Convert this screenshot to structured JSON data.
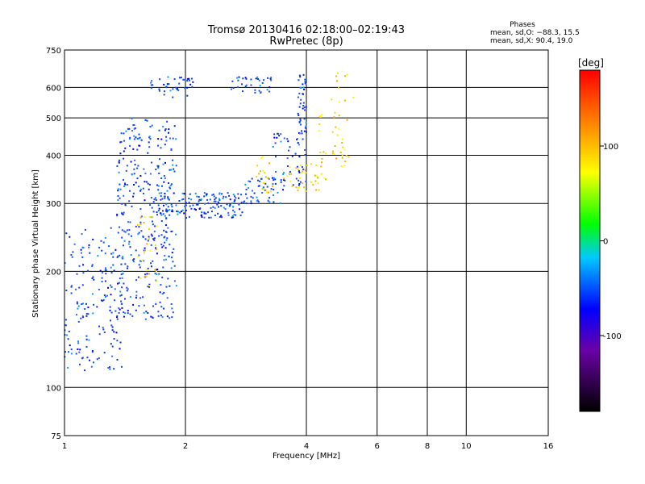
{
  "chart_data": {
    "type": "scatter",
    "title": "Tromsø 20130416 02:18:00–02:19:43",
    "subtitle": "RwPretec (8p)",
    "stats": {
      "heading": "Phases",
      "line_o": "mean, sd,O: −88.3, 15.5",
      "line_x": "mean, sd,X:  90.4, 19.0"
    },
    "xlabel": "Frequency [MHz]",
    "ylabel": "Stationary phase Virtual Height [km]",
    "x_scale": "log",
    "y_scale": "log",
    "xlim": [
      1,
      16
    ],
    "ylim": [
      75,
      750
    ],
    "x_ticks": [
      1,
      2,
      4,
      6,
      8,
      10,
      16
    ],
    "y_ticks": [
      75,
      100,
      200,
      300,
      400,
      500,
      600,
      750
    ],
    "grid": true,
    "colorbar": {
      "label": "[deg]",
      "range": [
        -180,
        180
      ],
      "ticks": [
        100,
        0,
        -100
      ]
    },
    "series": [
      {
        "mode": "O",
        "color_hint": "blue (≈ -90 deg)",
        "clusters": [
          {
            "x_range": [
              1.0,
              1.4
            ],
            "y_range": [
              110,
              260
            ],
            "count": 180
          },
          {
            "x_range": [
              1.35,
              1.9
            ],
            "y_range": [
              150,
              500
            ],
            "count": 350
          },
          {
            "x_range": [
              1.7,
              2.8
            ],
            "y_range": [
              275,
              320
            ],
            "count": 160
          },
          {
            "x_range": [
              2.8,
              3.5
            ],
            "y_range": [
              300,
              350
            ],
            "count": 50
          },
          {
            "x_range": [
              3.3,
              4.0
            ],
            "y_range": [
              330,
              460
            ],
            "count": 50
          },
          {
            "x_range": [
              3.8,
              4.0
            ],
            "y_range": [
              440,
              650
            ],
            "count": 45
          },
          {
            "x_range": [
              1.6,
              2.1
            ],
            "y_range": [
              560,
              640
            ],
            "count": 40
          },
          {
            "x_range": [
              2.6,
              3.3
            ],
            "y_range": [
              580,
              640
            ],
            "count": 35
          }
        ]
      },
      {
        "mode": "X",
        "color_hint": "yellow/orange (≈ +90 deg)",
        "clusters": [
          {
            "x_range": [
              1.5,
              1.7
            ],
            "y_range": [
              180,
              280
            ],
            "count": 30
          },
          {
            "x_range": [
              3.0,
              3.3
            ],
            "y_range": [
              320,
              400
            ],
            "count": 20
          },
          {
            "x_range": [
              3.5,
              4.5
            ],
            "y_range": [
              320,
              380
            ],
            "count": 40
          },
          {
            "x_range": [
              4.3,
              5.1
            ],
            "y_range": [
              370,
              520
            ],
            "count": 35
          },
          {
            "x_range": [
              4.6,
              5.3
            ],
            "y_range": [
              540,
              660
            ],
            "count": 10
          }
        ]
      }
    ]
  }
}
